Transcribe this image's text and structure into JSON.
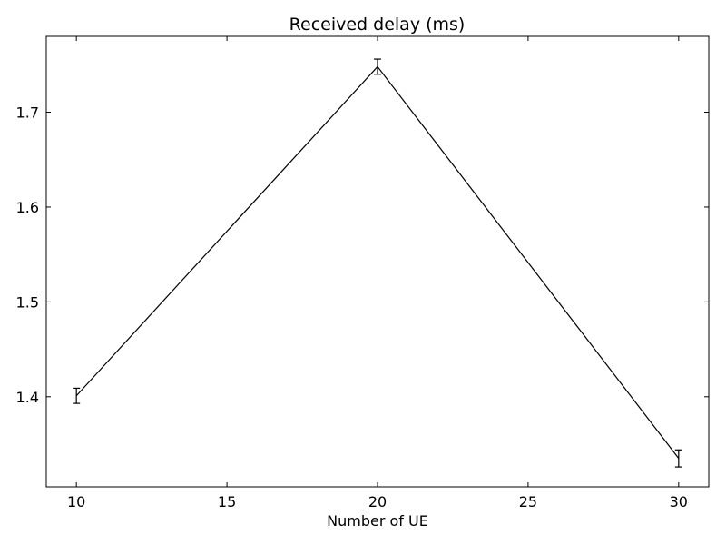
{
  "chart_data": {
    "type": "line",
    "title": "Received delay (ms)",
    "xlabel": "Number of UE",
    "ylabel": "",
    "xlim": [
      9,
      31
    ],
    "ylim": [
      1.305,
      1.78
    ],
    "x_ticks": [
      10,
      15,
      20,
      25,
      30
    ],
    "x_tick_labels": [
      "10",
      "15",
      "20",
      "25",
      "30"
    ],
    "y_ticks": [
      1.4,
      1.5,
      1.6,
      1.7
    ],
    "y_tick_labels": [
      "1.4",
      "1.5",
      "1.6",
      "1.7"
    ],
    "grid": false,
    "series": [
      {
        "x": [
          10,
          20,
          30
        ],
        "values": [
          1.401,
          1.748,
          1.335
        ],
        "error": [
          0.008,
          0.008,
          0.009
        ],
        "color": "#000000"
      }
    ]
  }
}
